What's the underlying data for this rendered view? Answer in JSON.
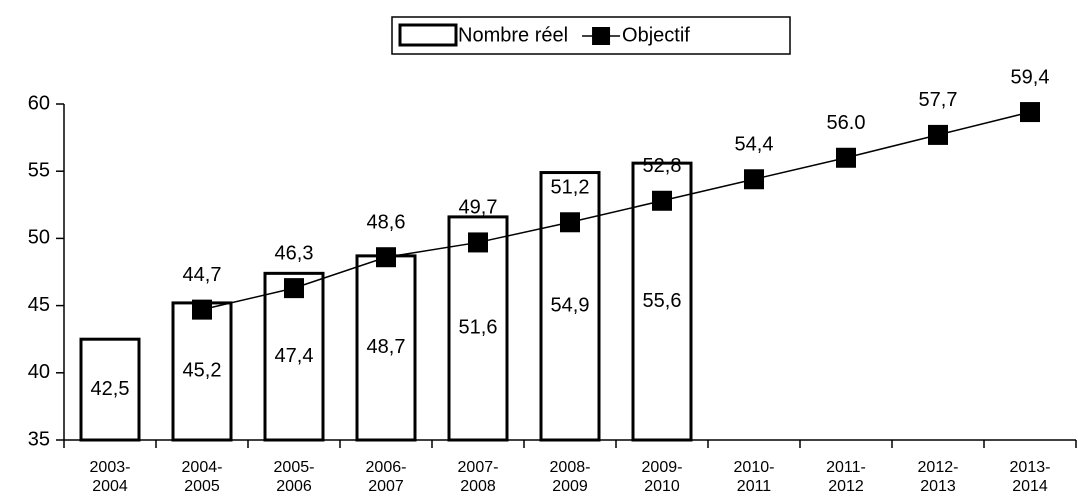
{
  "chart_data": {
    "type": "bar",
    "categories": [
      [
        "2003-",
        "2004"
      ],
      [
        "2004-",
        "2005"
      ],
      [
        "2005-",
        "2006"
      ],
      [
        "2006-",
        "2007"
      ],
      [
        "2007-",
        "2008"
      ],
      [
        "2008-",
        "2009"
      ],
      [
        "2009-",
        "2010"
      ],
      [
        "2010-",
        "2011"
      ],
      [
        "2011-",
        "2012"
      ],
      [
        "2012-",
        "2013"
      ],
      [
        "2013-",
        "2014"
      ]
    ],
    "series": [
      {
        "name": "Nombre réel",
        "type": "bar",
        "color": "#000000",
        "values": [
          42.5,
          45.2,
          47.4,
          48.7,
          51.6,
          54.9,
          55.6,
          null,
          null,
          null,
          null
        ],
        "value_labels": [
          "42,5",
          "45,2",
          "47,4",
          "48,7",
          "51,6",
          "54,9",
          "55,6",
          null,
          null,
          null,
          null
        ]
      },
      {
        "name": "Objectif",
        "type": "line",
        "color": "#000000",
        "values": [
          null,
          44.7,
          46.3,
          48.6,
          49.7,
          51.2,
          52.8,
          54.4,
          56.0,
          57.7,
          59.4
        ],
        "value_labels": [
          null,
          "44,7",
          "46,3",
          "48,6",
          "49,7",
          "51,2",
          "52,8",
          "54,4",
          "56.0",
          "57,7",
          "59,4"
        ]
      }
    ],
    "ylim": [
      35,
      60
    ],
    "yticks": [
      35,
      40,
      45,
      50,
      55,
      60
    ],
    "legend": "top"
  }
}
